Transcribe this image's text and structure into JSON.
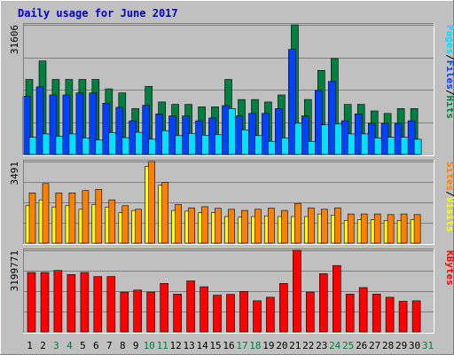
{
  "chart_data": {
    "type": "bar",
    "title": "Daily usage for June 2017",
    "x": [
      "1",
      "2",
      "3",
      "4",
      "5",
      "6",
      "7",
      "8",
      "9",
      "10",
      "11",
      "12",
      "13",
      "14",
      "15",
      "16",
      "17",
      "18",
      "19",
      "20",
      "21",
      "22",
      "23",
      "24",
      "25",
      "26",
      "27",
      "28",
      "29",
      "30",
      "31"
    ],
    "weekend_days": [
      "3",
      "4",
      "10",
      "11",
      "17",
      "18",
      "24",
      "25",
      "31"
    ],
    "panels": [
      {
        "name": "hits-files-pages",
        "ymax_label": "31606",
        "ymax": 31606,
        "legend": [
          {
            "label": "Pages",
            "color": "#00e0ff"
          },
          {
            "sep": "/",
            "color": "#000000"
          },
          {
            "label": "Files",
            "color": "#0040ff"
          },
          {
            "sep": "/",
            "color": "#000000"
          },
          {
            "label": "Hits",
            "color": "#008040"
          }
        ],
        "series": [
          {
            "name": "Hits",
            "color": "#008040",
            "values": [
              18300,
              22800,
              18300,
              18300,
              18300,
              18300,
              16000,
              15000,
              11200,
              16600,
              12800,
              12200,
              12200,
              11600,
              11600,
              18300,
              13400,
              13400,
              12800,
              14500,
              31606,
              13400,
              20500,
              23400,
              12200,
              12200,
              10600,
              10000,
              11200,
              11200,
              0
            ]
          },
          {
            "name": "Files",
            "color": "#0040ff",
            "values": [
              14200,
              16500,
              14500,
              14500,
              15000,
              15000,
              12500,
              11500,
              8200,
              12000,
              9900,
              9400,
              9400,
              8200,
              8900,
              11900,
              9400,
              10000,
              10000,
              11200,
              25600,
              9400,
              15600,
              17800,
              8200,
              9900,
              7600,
              7600,
              7600,
              8200,
              0
            ]
          },
          {
            "name": "Pages",
            "color": "#00e0ff",
            "values": [
              4200,
              5000,
              4400,
              5000,
              4000,
              3500,
              5300,
              4100,
              5400,
              3700,
              5800,
              4600,
              5100,
              4700,
              4800,
              11200,
              6000,
              4600,
              3200,
              4000,
              7600,
              3200,
              7200,
              7400,
              5000,
              5000,
              4000,
              4200,
              4200,
              3700,
              0
            ]
          }
        ]
      },
      {
        "name": "visits-sites",
        "ymax_label": "3491",
        "ymax": 3491,
        "legend": [
          {
            "label": "Sites",
            "color": "#ff8000"
          },
          {
            "sep": "/",
            "color": "#000000"
          },
          {
            "label": "Visits",
            "color": "#ffff00"
          }
        ],
        "series": [
          {
            "name": "Visits",
            "color": "#ffff00",
            "values": [
              1600,
              1850,
              1550,
              1600,
              1450,
              1650,
              1550,
              1300,
              1400,
              3280,
              2480,
              1400,
              1370,
              1300,
              1300,
              1140,
              1110,
              1140,
              1170,
              1140,
              1140,
              1140,
              1250,
              1200,
              970,
              1000,
              1000,
              970,
              970,
              1000,
              0
            ]
          },
          {
            "name": "Sites",
            "color": "#ff8000",
            "values": [
              2150,
              2550,
              2150,
              2150,
              2250,
              2300,
              1850,
              1600,
              1450,
              3491,
              2600,
              1650,
              1510,
              1560,
              1490,
              1450,
              1400,
              1450,
              1500,
              1400,
              1700,
              1510,
              1450,
              1510,
              1250,
              1250,
              1250,
              1220,
              1250,
              1220,
              0
            ]
          }
        ]
      },
      {
        "name": "kbytes",
        "ymax_label": "3199771",
        "ymax": 3199771,
        "legend": [
          {
            "label": "KBytes",
            "color": "#ff0000"
          }
        ],
        "series": [
          {
            "name": "KBytes",
            "color": "#ff0000",
            "values": [
              2330000,
              2330000,
              2410000,
              2250000,
              2330000,
              2170000,
              2170000,
              1560000,
              1640000,
              1560000,
              1900000,
              1480000,
              2000000,
              1770000,
              1440000,
              1470000,
              1590000,
              1220000,
              1360000,
              1900000,
              3199771,
              1560000,
              2280000,
              2600000,
              1480000,
              1740000,
              1480000,
              1360000,
              1200000,
              1220000,
              0
            ]
          }
        ]
      }
    ]
  }
}
